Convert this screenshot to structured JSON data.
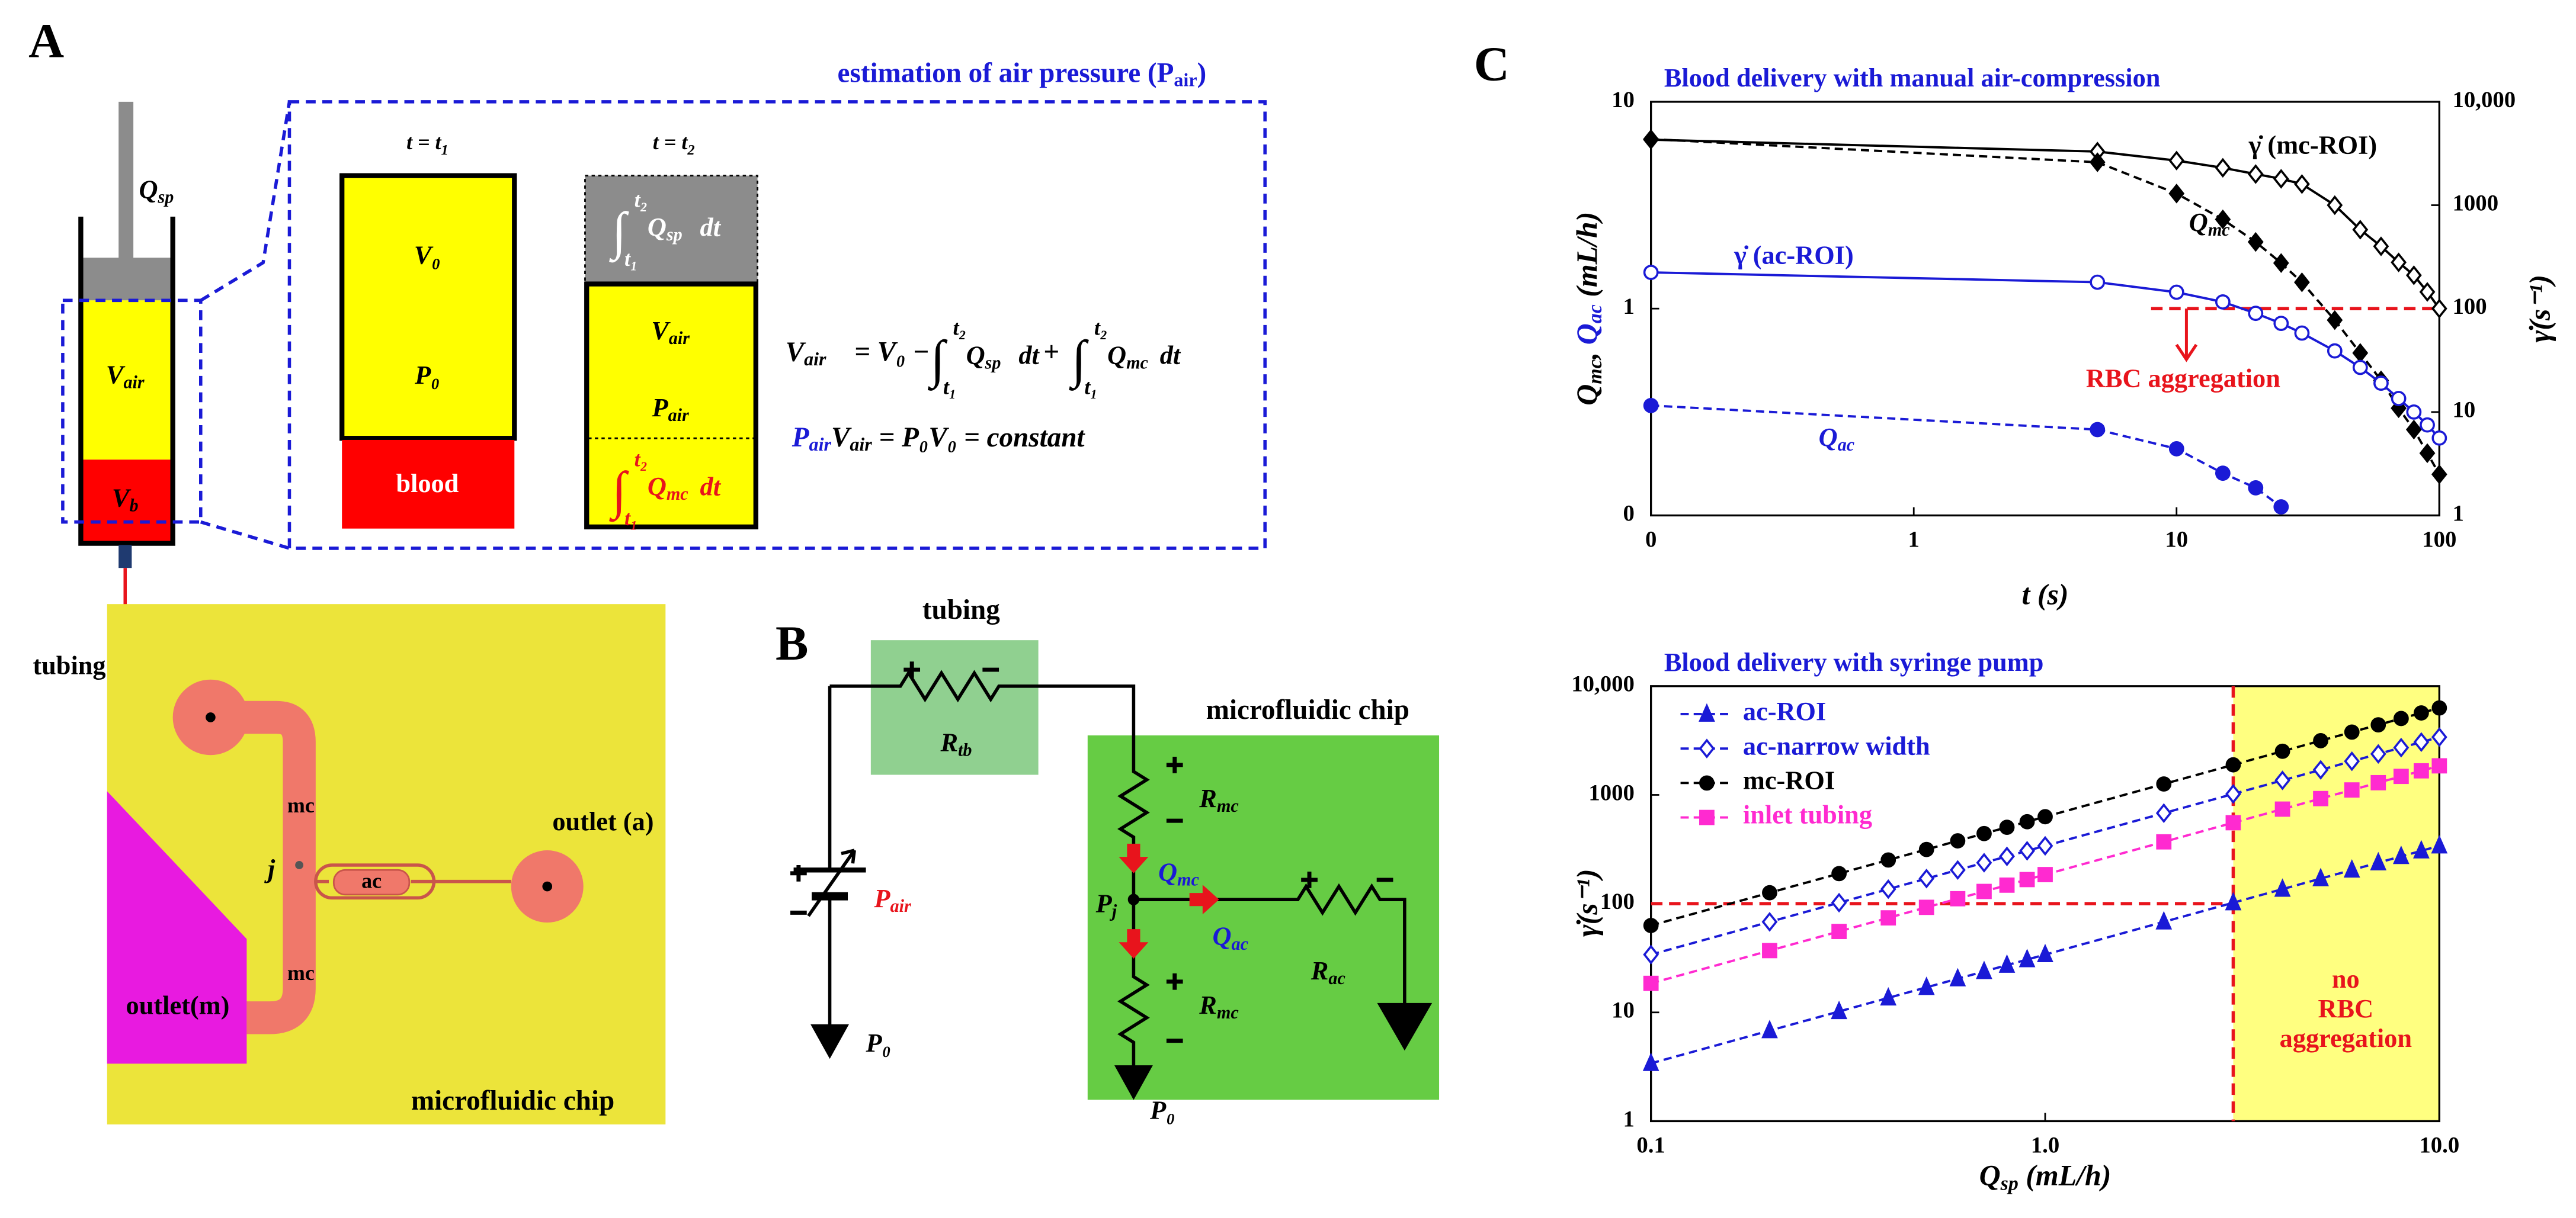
{
  "panel_labels": [
    "A",
    "B",
    "C"
  ],
  "panel_a": {
    "syringe_flow": [
      "Q",
      "sp"
    ],
    "syringe_air": [
      "V",
      "air"
    ],
    "syringe_blood": [
      "V",
      "b"
    ],
    "tubing": "tubing",
    "mc_upper": "mc",
    "junction": "j",
    "ac": "ac",
    "outlet_a": "outlet (a)",
    "mc_lower": "mc",
    "outlet_m": "outlet(m)",
    "chip": "microfluidic chip",
    "inset": {
      "title": [
        "estimation of air pressure (",
        "P",
        "air",
        ")"
      ],
      "time_1": [
        "t = t",
        "1"
      ],
      "time_2": [
        "t = t",
        "2"
      ],
      "v0": "V₀",
      "p0": "P₀",
      "blood": "blood",
      "integral_sp": {
        "sign": "∫",
        "upper": "t₂",
        "lower": "t₁",
        "flow": [
          "Q",
          "sp"
        ],
        "d": "dt"
      },
      "v_air": [
        "V",
        "air"
      ],
      "p_air": [
        "P",
        "air"
      ],
      "integral_mc": {
        "sign": "∫",
        "upper": "t₂",
        "lower": "t₁",
        "flow": [
          "Q",
          "mc"
        ],
        "d": "dt"
      },
      "equation_1": {
        "lhs": [
          "V",
          "air"
        ],
        "rhs": "= V₀ −",
        "integral_sp": {
          "sign": "∫",
          "upper": "t₂",
          "lower": "t₁",
          "flow": [
            "Q",
            "sp"
          ],
          "d": "dt"
        },
        "plus": "+",
        "integral_mc": {
          "sign": "∫",
          "upper": "t₂",
          "lower": "t₁",
          "flow": [
            "Q",
            "mc"
          ],
          "d": "dt"
        }
      },
      "equation_2": [
        "P",
        "air",
        "V",
        "air",
        " = P₀V₀ = constant"
      ]
    }
  },
  "panel_b": {
    "tubing": "tubing",
    "r_tb": [
      "R",
      "tb"
    ],
    "chip": "microfluidic chip",
    "p_air": [
      "P",
      "air"
    ],
    "p0_left": "P₀",
    "r_mc_upper": [
      "R",
      "mc"
    ],
    "q_mc": [
      "Q",
      "mc"
    ],
    "p_j": [
      "P",
      "j"
    ],
    "q_ac": [
      "Q",
      "ac"
    ],
    "r_ac": [
      "R",
      "ac"
    ],
    "r_mc_lower": [
      "R",
      "mc"
    ],
    "p0_bottom": "P₀"
  },
  "chart_data": [
    {
      "type": "line",
      "title": "Blood delivery with manual air-compression",
      "xlabel": "t (s)",
      "ylabel": [
        "Q",
        "mc",
        ", ",
        "Q",
        "ac",
        " (mL/h)"
      ],
      "y2label": "γ̇(s⁻¹)",
      "xscale": "log",
      "yscale": "log",
      "y2scale": "log",
      "xlim": [
        0.1,
        100
      ],
      "xticks": [
        {
          "value": 0.1,
          "label": "0"
        },
        1,
        10,
        100
      ],
      "ylim": [
        0.1,
        10
      ],
      "yticks": [
        {
          "value": 0.1,
          "label": "0"
        },
        1,
        10
      ],
      "y2lim": [
        1,
        10000
      ],
      "y2ticks": [
        1,
        10,
        100,
        1000,
        {
          "value": 10000,
          "label": "10,000"
        }
      ],
      "x": [
        0.1,
        5,
        10,
        15,
        20,
        25,
        30,
        40,
        50,
        60,
        70,
        80,
        90,
        100
      ],
      "series": [
        {
          "name": "γ̇ (mc-ROI)",
          "color": "#000000",
          "axis": "y2",
          "dash": false,
          "marker": "diamond",
          "filled": false,
          "values": [
            4300,
            3300,
            2700,
            2300,
            2000,
            1800,
            1600,
            1000,
            580,
            400,
            280,
            210,
            145,
            100
          ]
        },
        {
          "name": [
            "Q",
            "mc"
          ],
          "color": "#000000",
          "dash": true,
          "marker": "diamond",
          "filled": true,
          "values": [
            6.6,
            5.1,
            3.6,
            2.7,
            2.1,
            1.66,
            1.34,
            0.88,
            0.61,
            0.45,
            0.33,
            0.26,
            0.2,
            0.158
          ]
        },
        {
          "name": "γ̇ (ac-ROI)",
          "color": "#1a1ad6",
          "axis": "y2",
          "dash": false,
          "marker": "circle",
          "filled": false,
          "values": [
            224,
            180,
            144,
            116,
            90,
            72,
            58,
            39,
            27,
            19,
            13.5,
            10,
            7.5,
            5.6
          ]
        },
        {
          "name": [
            "Q",
            "ac"
          ],
          "color": "#1a1ad6",
          "dash": true,
          "marker": "circle",
          "filled": true,
          "values": [
            0.34,
            0.26,
            0.21,
            0.16,
            0.136,
            0.11,
            null,
            null,
            null,
            null,
            null,
            null,
            null,
            null
          ]
        }
      ],
      "threshold": {
        "y2": 100,
        "from_x": 8,
        "color": "#e8141c"
      },
      "annotation": "RBC aggregation"
    },
    {
      "type": "line",
      "title": "Blood delivery with syringe pump",
      "xlabel": [
        "Q",
        "sp",
        " (mL/h)"
      ],
      "ylabel": "γ̇(s⁻¹)",
      "xscale": "log",
      "yscale": "log",
      "xlim": [
        0.1,
        10
      ],
      "xticks": [
        0.1,
        {
          "value": 1,
          "label": "1.0"
        },
        {
          "value": 10,
          "label": "10.0"
        }
      ],
      "ylim": [
        1,
        10000
      ],
      "yticks": [
        1,
        10,
        100,
        1000,
        {
          "value": 10000,
          "label": "10,000"
        }
      ],
      "legend": "upper left",
      "x": [
        0.1,
        0.2,
        0.3,
        0.4,
        0.5,
        0.6,
        0.7,
        0.8,
        0.9,
        1,
        2,
        3,
        4,
        5,
        6,
        7,
        8,
        9,
        10
      ],
      "series": [
        {
          "name": "ac-ROI",
          "color": "#1a1ad6",
          "dash": true,
          "marker": "triangle",
          "filled": true,
          "values": [
            3.4,
            6.8,
            10.2,
            13.6,
            17,
            20.4,
            23.8,
            27.2,
            30.6,
            34,
            68,
            102,
            136,
            170,
            204,
            238,
            272,
            306,
            340
          ]
        },
        {
          "name": "ac-narrow width",
          "color": "#1a1ad6",
          "dash": true,
          "marker": "diamond",
          "filled": false,
          "values": [
            34,
            68,
            102,
            136,
            170,
            204,
            238,
            272,
            306,
            340,
            680,
            1020,
            1360,
            1700,
            2040,
            2380,
            2720,
            3060,
            3400
          ]
        },
        {
          "name": "mc-ROI",
          "color": "#000000",
          "dash": true,
          "marker": "circle",
          "filled": true,
          "values": [
            63,
            126,
            189,
            252,
            315,
            378,
            441,
            504,
            567,
            630,
            1260,
            1890,
            2520,
            3150,
            3780,
            4410,
            5040,
            5670,
            6300
          ]
        },
        {
          "name": "inlet tubing",
          "color": "#ff2ad0",
          "dash": true,
          "marker": "square",
          "filled": true,
          "values": [
            18.5,
            37,
            55.5,
            74,
            92.5,
            111,
            129.5,
            148,
            166.5,
            185,
            370,
            555,
            740,
            925,
            1110,
            1295,
            1480,
            1665,
            1850
          ]
        }
      ],
      "threshold": {
        "y": 100,
        "color": "#e8141c"
      },
      "region": {
        "from_x": 3,
        "color": "#ffff80"
      },
      "annotation": [
        "no",
        "RBC",
        "aggregation"
      ]
    }
  ]
}
